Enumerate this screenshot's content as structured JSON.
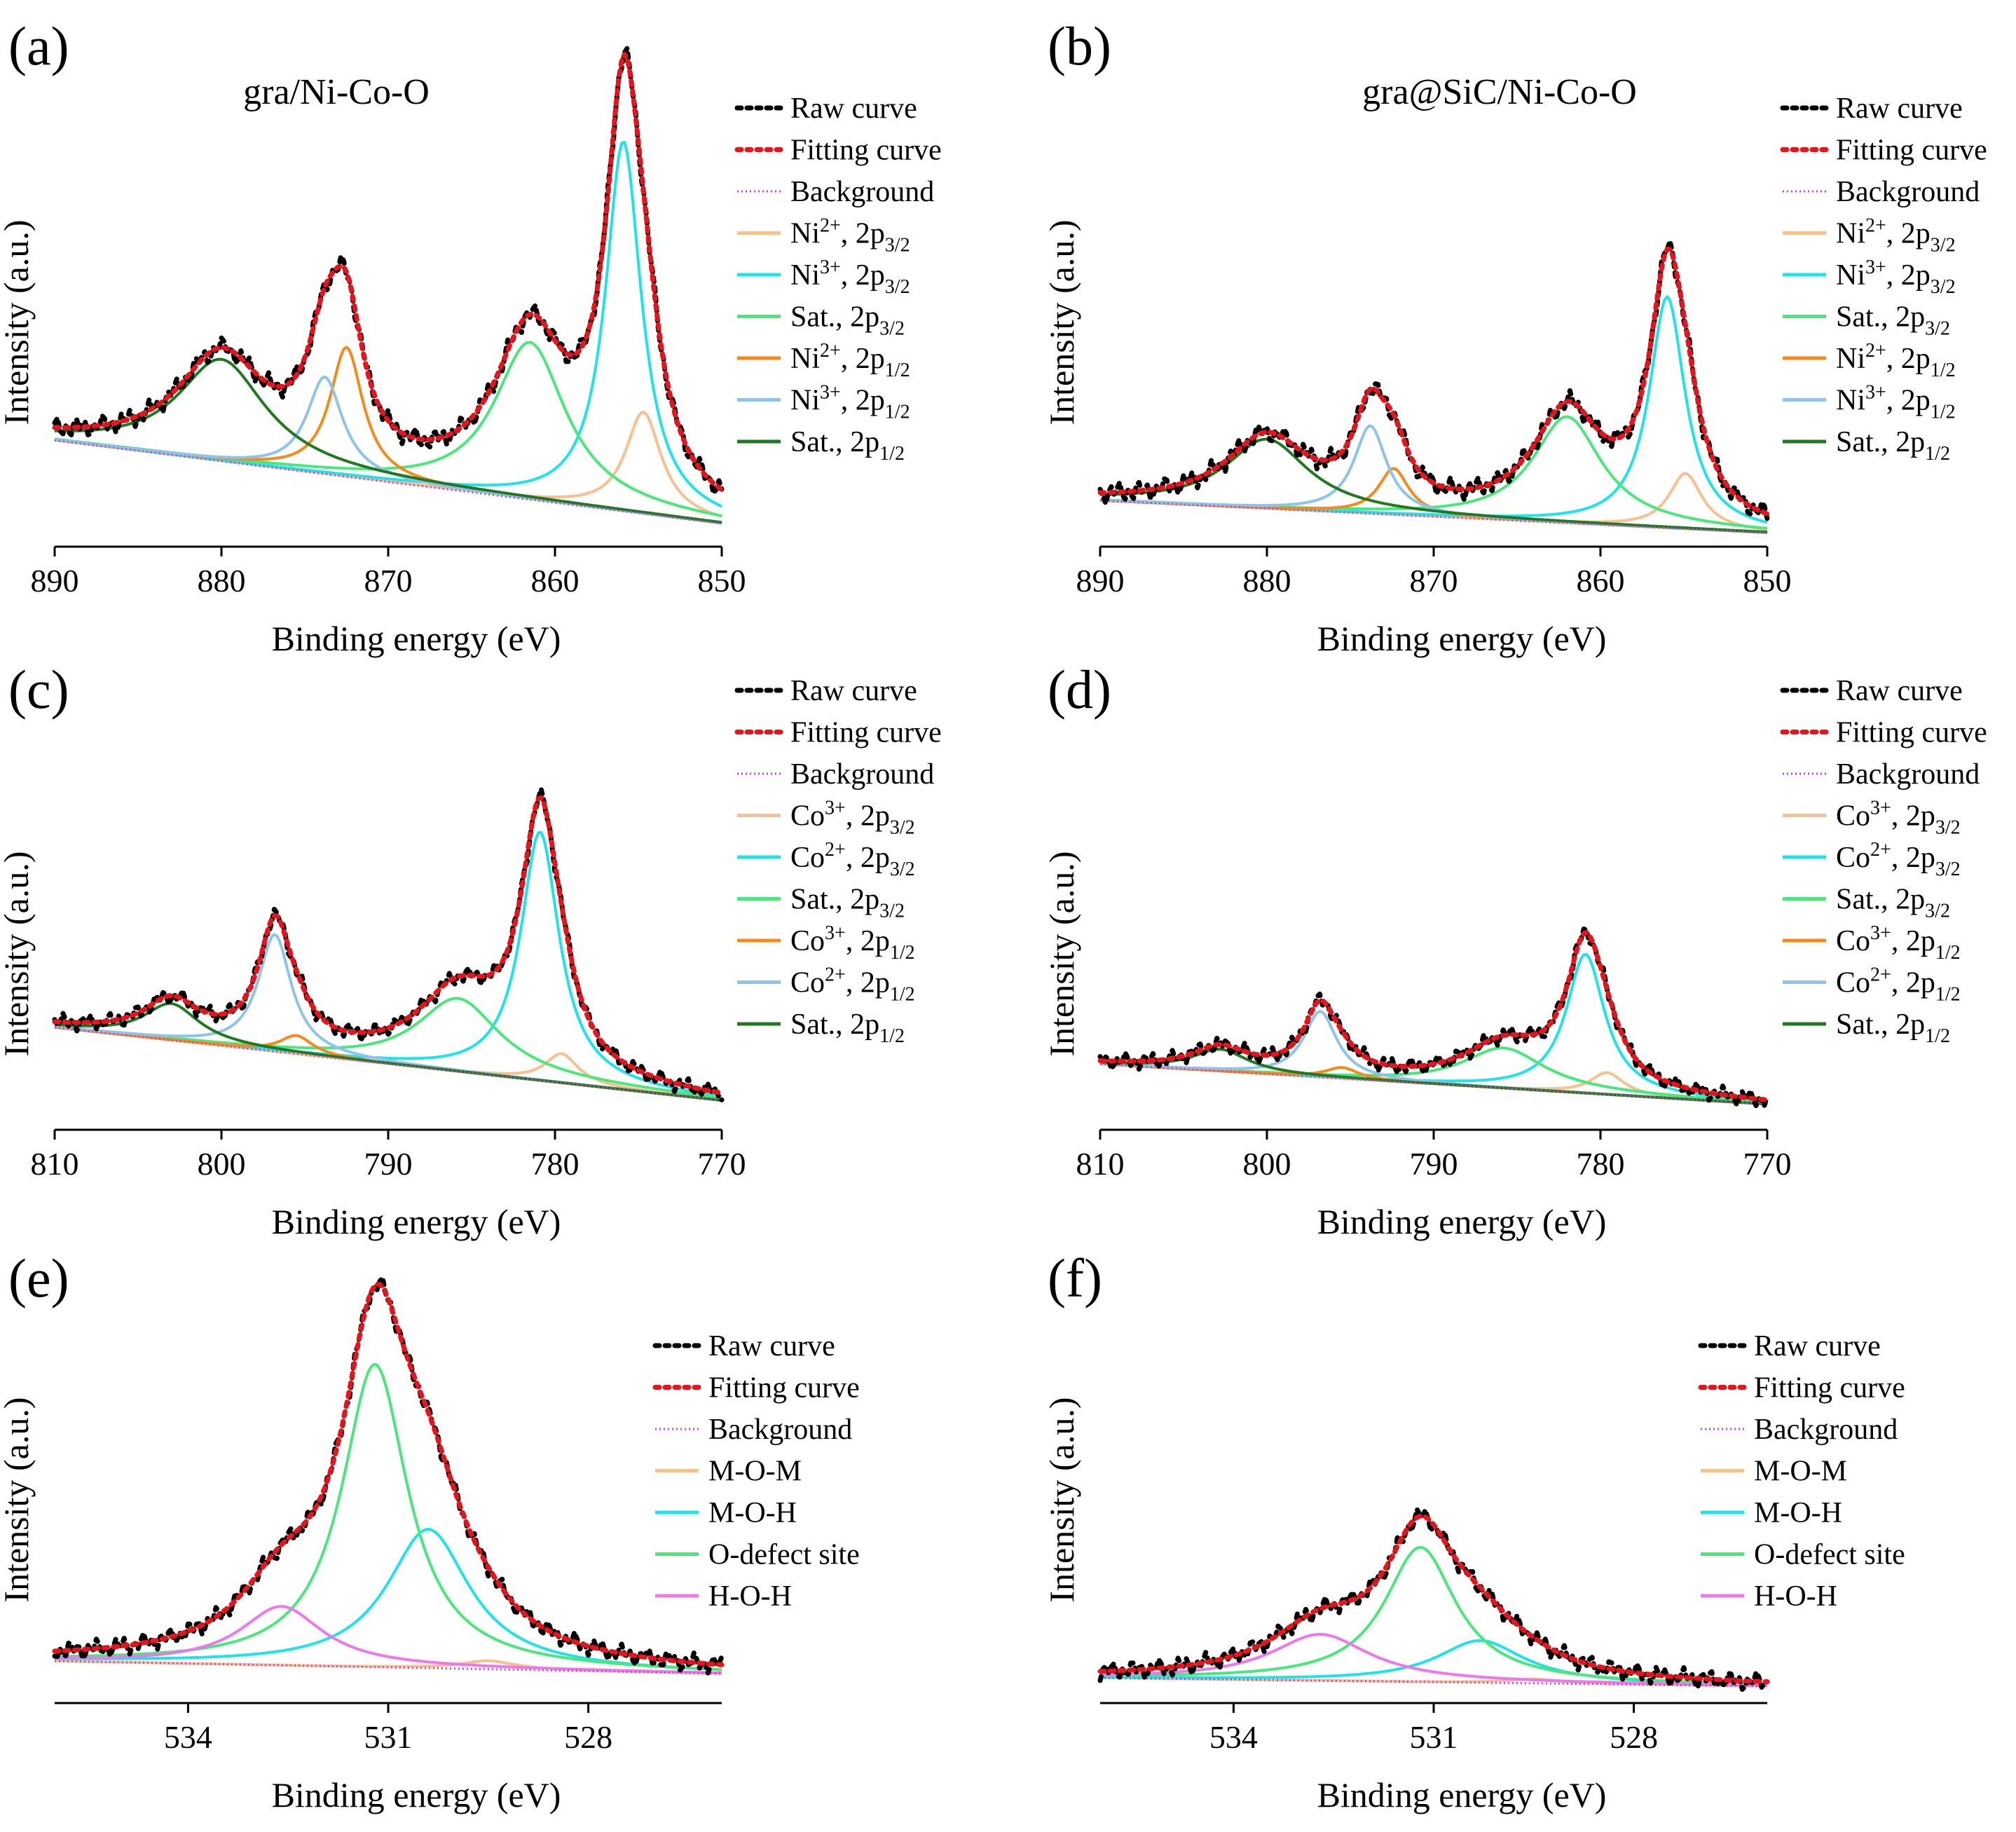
{
  "figure": {
    "common": {
      "ylabel": "Intensity (a.u.)",
      "xlabel": "Binding energy (eV)"
    },
    "colors": {
      "raw": "#000000",
      "fit": "#e8141b",
      "bg": "#cc44cc",
      "orange_light": "#f7c08e",
      "cyan": "#1ee3ea",
      "green_light": "#49e87b",
      "orange": "#f5891a",
      "blue_light": "#8ec3ec",
      "green_dark": "#1f7a1f",
      "pink": "#ee77ee"
    }
  },
  "chart_data": [
    {
      "id": "a",
      "panel_label": "(a)",
      "title": "gra/Ni-Co-O",
      "type": "line",
      "xlabel": "Binding energy (eV)",
      "ylabel": "Intensity (a.u.)",
      "xlim": [
        890,
        850
      ],
      "ylim": [
        0,
        100
      ],
      "xticks": [
        890,
        880,
        870,
        860,
        850
      ],
      "background": {
        "start": 23,
        "end": 5
      },
      "series": [
        {
          "name": "Raw curve",
          "style": "raw",
          "color": "#000000",
          "peaks": []
        },
        {
          "name": "Fitting curve",
          "style": "fit",
          "color": "#e8141b",
          "peaks": []
        },
        {
          "name": "Background",
          "style": "bg",
          "color": "#cc44cc",
          "peaks": []
        },
        {
          "name": "Ni2+, 2p3/2",
          "ion": "Ni",
          "charge": "2+",
          "sub": "3/2",
          "color": "#f7c08e",
          "peaks": [
            [
              854.7,
              22,
              1.3
            ]
          ]
        },
        {
          "name": "Ni3+, 2p3/2",
          "ion": "Ni",
          "charge": "3+",
          "sub": "3/2",
          "color": "#1ee3ea",
          "peaks": [
            [
              855.9,
              80,
              1.3
            ]
          ]
        },
        {
          "name": "Sat., 2p3/2",
          "label": "Sat.",
          "sub": "3/2",
          "color": "#49e87b",
          "peaks": [
            [
              861.5,
              34,
              2.6
            ]
          ]
        },
        {
          "name": "Ni2+, 2p1/2",
          "ion": "Ni",
          "charge": "2+",
          "sub": "1/2",
          "color": "#f5891a",
          "peaks": [
            [
              872.5,
              28,
              1.2
            ]
          ]
        },
        {
          "name": "Ni3+, 2p1/2",
          "ion": "Ni",
          "charge": "3+",
          "sub": "1/2",
          "color": "#8ec3ec",
          "peaks": [
            [
              873.8,
              21,
              1.3
            ]
          ]
        },
        {
          "name": "Sat., 2p1/2",
          "label": "Sat.",
          "sub": "1/2",
          "color": "#1f7a1f",
          "peaks": [
            [
              880.0,
              22,
              3.2
            ]
          ]
        }
      ]
    },
    {
      "id": "b",
      "panel_label": "(b)",
      "title": "gra@SiC/Ni-Co-O",
      "type": "line",
      "xlabel": "Binding energy (eV)",
      "ylabel": "Intensity (a.u.)",
      "xlim": [
        890,
        850
      ],
      "ylim": [
        0,
        100
      ],
      "xticks": [
        890,
        880,
        870,
        860,
        850
      ],
      "background": {
        "start": 10,
        "end": 3
      },
      "series": [
        {
          "name": "Raw curve",
          "style": "raw",
          "color": "#000000",
          "peaks": []
        },
        {
          "name": "Fitting curve",
          "style": "fit",
          "color": "#e8141b",
          "peaks": []
        },
        {
          "name": "Background",
          "style": "bg",
          "color": "#cc44cc",
          "peaks": []
        },
        {
          "name": "Ni2+, 2p3/2",
          "ion": "Ni",
          "charge": "2+",
          "sub": "3/2",
          "color": "#f7c08e",
          "peaks": [
            [
              854.9,
              12,
              1.2
            ]
          ]
        },
        {
          "name": "Ni3+, 2p3/2",
          "ion": "Ni",
          "charge": "3+",
          "sub": "3/2",
          "color": "#1ee3ea",
          "peaks": [
            [
              856.0,
              50,
              1.3
            ]
          ]
        },
        {
          "name": "Sat., 2p3/2",
          "label": "Sat.",
          "sub": "3/2",
          "color": "#49e87b",
          "peaks": [
            [
              862.0,
              23,
              2.5
            ]
          ]
        },
        {
          "name": "Ni2+, 2p1/2",
          "ion": "Ni",
          "charge": "2+",
          "sub": "1/2",
          "color": "#f5891a",
          "peaks": [
            [
              872.4,
              10,
              1.1
            ]
          ]
        },
        {
          "name": "Ni3+, 2p1/2",
          "ion": "Ni",
          "charge": "3+",
          "sub": "1/2",
          "color": "#8ec3ec",
          "peaks": [
            [
              873.8,
              19,
              1.2
            ]
          ]
        },
        {
          "name": "Sat., 2p1/2",
          "label": "Sat.",
          "sub": "1/2",
          "color": "#1f7a1f",
          "peaks": [
            [
              880.0,
              15,
              3.0
            ]
          ]
        }
      ]
    },
    {
      "id": "c",
      "panel_label": "(c)",
      "title": "",
      "type": "line",
      "xlabel": "Binding energy (eV)",
      "ylabel": "Intensity (a.u.)",
      "xlim": [
        810,
        770
      ],
      "ylim": [
        0,
        100
      ],
      "xticks": [
        810,
        800,
        790,
        780,
        770
      ],
      "background": {
        "start": 28,
        "end": 8
      },
      "series": [
        {
          "name": "Raw curve",
          "style": "raw",
          "color": "#000000",
          "peaks": []
        },
        {
          "name": "Fitting curve",
          "style": "fit",
          "color": "#e8141b",
          "peaks": []
        },
        {
          "name": "Background",
          "style": "bg",
          "color": "#cc44cc",
          "peaks": []
        },
        {
          "name": "Co3+, 2p3/2",
          "ion": "Co",
          "charge": "3+",
          "sub": "3/2",
          "color": "#f7c08e",
          "peaks": [
            [
              779.6,
              8,
              1.2
            ]
          ]
        },
        {
          "name": "Co2+, 2p3/2",
          "ion": "Co",
          "charge": "2+",
          "sub": "3/2",
          "color": "#1ee3ea",
          "peaks": [
            [
              780.9,
              68,
              1.4
            ]
          ]
        },
        {
          "name": "Sat., 2p3/2",
          "label": "Sat.",
          "sub": "3/2",
          "color": "#49e87b",
          "peaks": [
            [
              785.8,
              20,
              3.0
            ]
          ]
        },
        {
          "name": "Co3+, 2p1/2",
          "ion": "Co",
          "charge": "3+",
          "sub": "1/2",
          "color": "#f5891a",
          "peaks": [
            [
              795.5,
              5,
              1.2
            ]
          ]
        },
        {
          "name": "Co2+, 2p1/2",
          "ion": "Co",
          "charge": "2+",
          "sub": "1/2",
          "color": "#8ec3ec",
          "peaks": [
            [
              796.8,
              32,
              1.2
            ]
          ]
        },
        {
          "name": "Sat., 2p1/2",
          "label": "Sat.",
          "sub": "1/2",
          "color": "#1f7a1f",
          "peaks": [
            [
              803.0,
              10,
              2.0
            ]
          ]
        }
      ]
    },
    {
      "id": "d",
      "panel_label": "(d)",
      "title": "",
      "type": "line",
      "xlabel": "Binding energy (eV)",
      "ylabel": "Intensity (a.u.)",
      "xlim": [
        810,
        770
      ],
      "ylim": [
        0,
        100
      ],
      "xticks": [
        810,
        800,
        790,
        780,
        770
      ],
      "background": {
        "start": 18,
        "end": 7
      },
      "series": [
        {
          "name": "Raw curve",
          "style": "raw",
          "color": "#000000",
          "peaks": []
        },
        {
          "name": "Fitting curve",
          "style": "fit",
          "color": "#e8141b",
          "peaks": []
        },
        {
          "name": "Background",
          "style": "bg",
          "color": "#cc44cc",
          "peaks": []
        },
        {
          "name": "Co3+, 2p3/2",
          "ion": "Co",
          "charge": "3+",
          "sub": "3/2",
          "color": "#f7c08e",
          "peaks": [
            [
              779.6,
              6,
              1.2
            ]
          ]
        },
        {
          "name": "Co2+, 2p3/2",
          "ion": "Co",
          "charge": "2+",
          "sub": "3/2",
          "color": "#1ee3ea",
          "peaks": [
            [
              780.9,
              38,
              1.4
            ]
          ]
        },
        {
          "name": "Sat., 2p3/2",
          "label": "Sat.",
          "sub": "3/2",
          "color": "#49e87b",
          "peaks": [
            [
              785.8,
              11,
              3.0
            ]
          ]
        },
        {
          "name": "Co3+, 2p1/2",
          "ion": "Co",
          "charge": "3+",
          "sub": "1/2",
          "color": "#f5891a",
          "peaks": [
            [
              795.5,
              3,
              1.2
            ]
          ]
        },
        {
          "name": "Co2+, 2p1/2",
          "ion": "Co",
          "charge": "2+",
          "sub": "1/2",
          "color": "#8ec3ec",
          "peaks": [
            [
              796.8,
              18,
              1.2
            ]
          ]
        },
        {
          "name": "Sat., 2p1/2",
          "label": "Sat.",
          "sub": "1/2",
          "color": "#1f7a1f",
          "peaks": [
            [
              802.8,
              6,
              2.0
            ]
          ]
        }
      ]
    },
    {
      "id": "e",
      "panel_label": "(e)",
      "title": "",
      "type": "line",
      "xlabel": "Binding energy (eV)",
      "ylabel": "Intensity (a.u.)",
      "xlim": [
        536,
        526
      ],
      "ylim": [
        0,
        100
      ],
      "xticks": [
        534,
        531,
        528
      ],
      "background": {
        "start": 10,
        "end": 7
      },
      "series": [
        {
          "name": "Raw curve",
          "style": "raw",
          "color": "#000000",
          "peaks": []
        },
        {
          "name": "Fitting curve",
          "style": "fit",
          "color": "#e8141b",
          "peaks": []
        },
        {
          "name": "Background",
          "style": "bg",
          "color": "#cc44cc",
          "peaks": []
        },
        {
          "name": "M-O-M",
          "color": "#f7c08e",
          "peaks": [
            [
              529.5,
              2,
              0.5
            ]
          ]
        },
        {
          "name": "M-O-H",
          "color": "#1ee3ea",
          "peaks": [
            [
              530.4,
              33,
              0.75
            ]
          ]
        },
        {
          "name": "O-defect site",
          "color": "#49e87b",
          "peaks": [
            [
              531.2,
              72,
              0.6
            ]
          ]
        },
        {
          "name": "H-O-H",
          "color": "#ee77ee",
          "peaks": [
            [
              532.6,
              14,
              0.75
            ]
          ]
        }
      ]
    },
    {
      "id": "f",
      "panel_label": "(f)",
      "title": "",
      "type": "line",
      "xlabel": "Binding energy (eV)",
      "ylabel": "Intensity (a.u.)",
      "xlim": [
        536,
        526
      ],
      "ylim": [
        0,
        100
      ],
      "xticks": [
        534,
        531,
        528
      ],
      "background": {
        "start": 6,
        "end": 4
      },
      "series": [
        {
          "name": "Raw curve",
          "style": "raw",
          "color": "#000000",
          "peaks": []
        },
        {
          "name": "Fitting curve",
          "style": "fit",
          "color": "#e8141b",
          "peaks": []
        },
        {
          "name": "Background",
          "style": "bg",
          "color": "#cc44cc",
          "peaks": []
        },
        {
          "name": "M-O-M",
          "color": "#f7c08e",
          "peaks": [
            [
              529.5,
              1,
              0.5
            ]
          ]
        },
        {
          "name": "M-O-H",
          "color": "#1ee3ea",
          "peaks": [
            [
              530.3,
              10,
              0.8
            ]
          ]
        },
        {
          "name": "O-defect site",
          "color": "#49e87b",
          "peaks": [
            [
              531.2,
              32,
              0.65
            ]
          ]
        },
        {
          "name": "H-O-H",
          "color": "#ee77ee",
          "peaks": [
            [
              532.7,
              11,
              0.9
            ]
          ]
        }
      ]
    }
  ]
}
